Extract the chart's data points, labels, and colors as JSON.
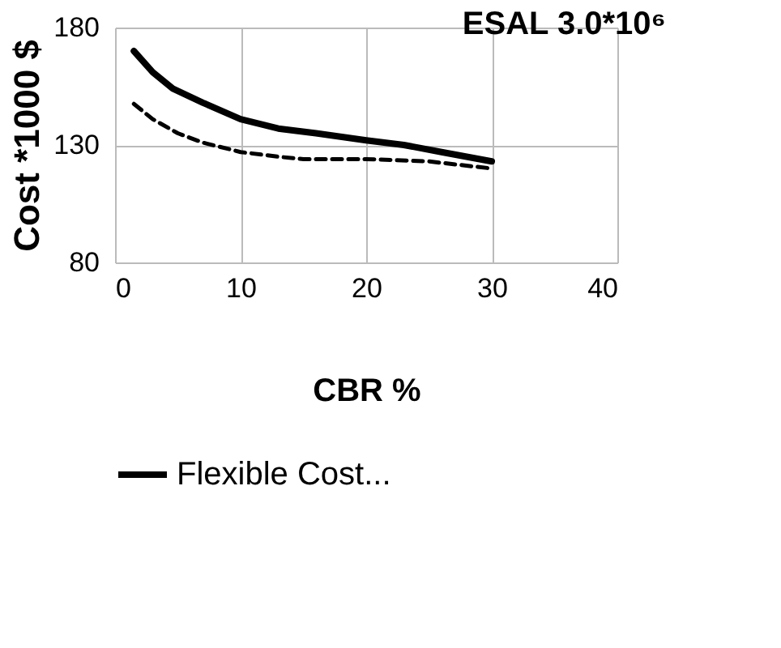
{
  "chart_data": {
    "type": "line",
    "xlabel": "CBR %",
    "ylabel": "Cost *1000 $",
    "xlim": [
      0,
      40
    ],
    "xticks": [
      0,
      10,
      20,
      30,
      40
    ],
    "ylim": [
      80,
      180
    ],
    "yticks": [
      80,
      130,
      180
    ],
    "grid": true,
    "legend": "bottom",
    "annotations": [
      "ESAL 3.0*10⁶"
    ],
    "series": [
      {
        "name": "Flexible  Cost...",
        "color": "#000000",
        "line_style": "solid",
        "x": [
          1.5,
          3,
          4.6,
          7,
          10,
          13,
          16,
          20,
          23,
          26,
          30
        ],
        "values": [
          170,
          161,
          154,
          148,
          141,
          137,
          135,
          132,
          130,
          127,
          123
        ]
      },
      {
        "color": "#000000",
        "line_style": "dashed",
        "x": [
          1.5,
          3,
          5,
          7,
          10,
          13,
          15,
          20,
          25,
          30
        ],
        "values": [
          147.5,
          141,
          135,
          131,
          127,
          125,
          124,
          124,
          123,
          120
        ]
      }
    ]
  }
}
